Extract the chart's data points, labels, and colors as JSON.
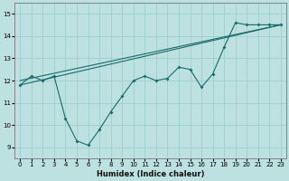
{
  "xlabel": "Humidex (Indice chaleur)",
  "bg_color": "#bde0e0",
  "grid_color": "#9ecece",
  "line_color": "#1a6b6b",
  "xlim": [
    -0.5,
    23.5
  ],
  "ylim": [
    8.5,
    15.5
  ],
  "xticks": [
    0,
    1,
    2,
    3,
    4,
    5,
    6,
    7,
    8,
    9,
    10,
    11,
    12,
    13,
    14,
    15,
    16,
    17,
    18,
    19,
    20,
    21,
    22,
    23
  ],
  "yticks": [
    9,
    10,
    11,
    12,
    13,
    14,
    15
  ],
  "line1_x": [
    0,
    1,
    2,
    3,
    4,
    5,
    6,
    7,
    8,
    9,
    10,
    11,
    12,
    13,
    14,
    15,
    16,
    17,
    18,
    19,
    20,
    21,
    22,
    23
  ],
  "line1_y": [
    11.8,
    12.2,
    12.0,
    12.2,
    10.3,
    9.3,
    9.1,
    9.8,
    10.6,
    11.3,
    12.0,
    12.2,
    12.0,
    12.1,
    12.6,
    12.5,
    11.7,
    12.3,
    13.5,
    14.6,
    14.5,
    14.5,
    14.5,
    14.5
  ],
  "line2_x": [
    0,
    23
  ],
  "line2_y": [
    11.8,
    14.5
  ],
  "line3_x": [
    0,
    23
  ],
  "line3_y": [
    12.0,
    14.5
  ]
}
